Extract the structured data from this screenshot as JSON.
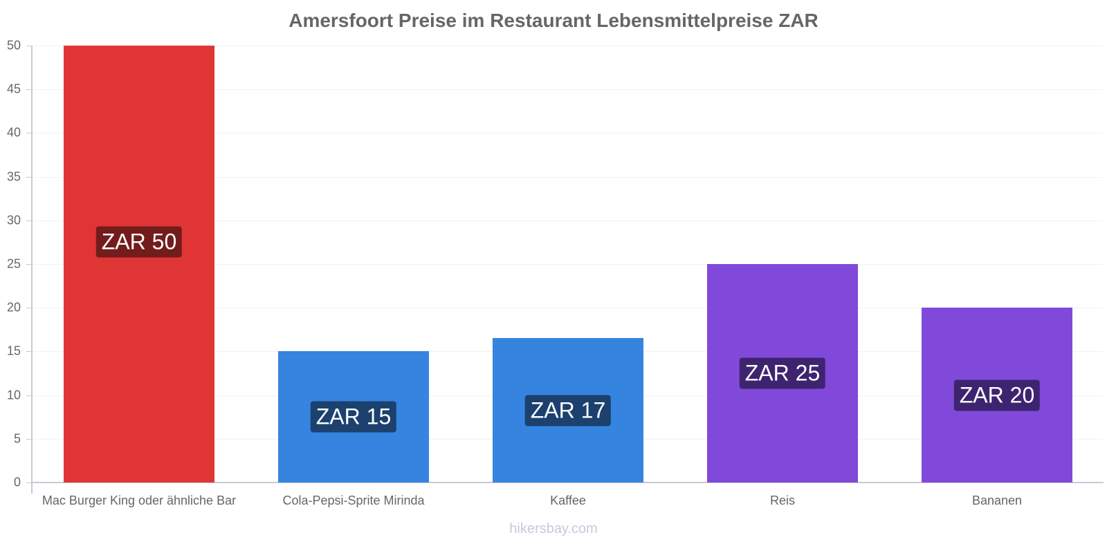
{
  "chart_data": {
    "type": "bar",
    "title": "Amersfoort Preise im Restaurant Lebensmittelpreise ZAR",
    "xlabel": "",
    "ylabel": "",
    "ylim": [
      0,
      50
    ],
    "yticks": [
      "0",
      "5",
      "10",
      "15",
      "20",
      "25",
      "30",
      "35",
      "40",
      "45",
      "50"
    ],
    "grid": true,
    "categories": [
      "Mac Burger King oder ähnliche Bar",
      "Cola-Pepsi-Sprite Mirinda",
      "Kaffee",
      "Reis",
      "Bananen"
    ],
    "values": [
      50,
      15,
      16.5,
      25,
      20
    ],
    "data_labels": [
      "ZAR 50",
      "ZAR 15",
      "ZAR 17",
      "ZAR 25",
      "ZAR 20"
    ],
    "bar_colors": [
      "#e03535",
      "#3584e0",
      "#3584e0",
      "#8149d9",
      "#8149d9"
    ],
    "label_bg_colors": [
      "#731c1c",
      "#1c416e",
      "#1c416e",
      "#3e2470",
      "#3e2470"
    ]
  },
  "watermark": "hikersbay.com"
}
